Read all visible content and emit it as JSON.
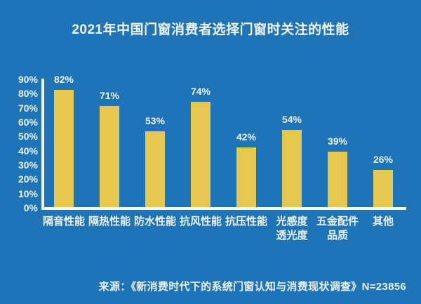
{
  "title": "2021年中国门窗消费者选择门窗时关注的性能",
  "source": "来源：《新消费时代下的系统门窗认知与消费现状调查》N=23856",
  "colors": {
    "background": "#1F73B7",
    "bar": "#E6C850",
    "text": "#EDF4F0",
    "axis": "#F4F8F5"
  },
  "chart_data": {
    "type": "bar",
    "title": "2021年中国门窗消费者选择门窗时关注的性能",
    "categories": [
      "隔音性能",
      "隔热性能",
      "防水性能",
      "抗风性能",
      "抗压性能",
      "光感度\n透光度",
      "五金配件\n品质",
      "其他"
    ],
    "values": [
      82,
      71,
      53,
      74,
      42,
      54,
      39,
      26
    ],
    "data_labels": [
      "82%",
      "71%",
      "53%",
      "74%",
      "42%",
      "54%",
      "39%",
      "26%"
    ],
    "xlabel": "",
    "ylabel": "",
    "ylim": [
      0,
      90
    ],
    "yticks": [
      "90%",
      "80%",
      "70%",
      "60%",
      "50%",
      "40%",
      "30%",
      "20%",
      "10%",
      "0%"
    ],
    "grid": false,
    "legend": false,
    "source": "来源：《新消费时代下的系统门窗认知与消费现状调查》N=23856"
  }
}
